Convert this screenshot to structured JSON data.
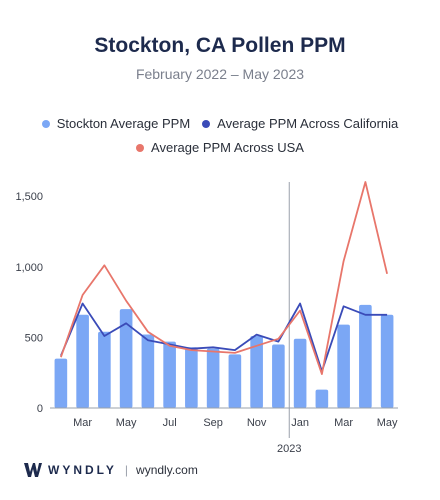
{
  "header": {
    "title": "Stockton, CA Pollen PPM",
    "subtitle": "February 2022 – May 2023"
  },
  "legend": [
    {
      "label": "Stockton Average PPM",
      "color": "#7ba7f5"
    },
    {
      "label": "Average PPM Across California",
      "color": "#3a4bb8"
    },
    {
      "label": "Average PPM Across USA",
      "color": "#e8766b"
    }
  ],
  "footer": {
    "brand": "WYNDLY",
    "url": "wyndly.com"
  },
  "chart_data": {
    "type": "bar",
    "categories": [
      "Feb 2022",
      "Mar 2022",
      "Apr 2022",
      "May 2022",
      "Jun 2022",
      "Jul 2022",
      "Aug 2022",
      "Sep 2022",
      "Oct 2022",
      "Nov 2022",
      "Dec 2022",
      "Jan 2023",
      "Feb 2023",
      "Mar 2023",
      "Apr 2023",
      "May 2023"
    ],
    "tick_labels": [
      "Mar",
      "May",
      "Jul",
      "Sep",
      "Nov",
      "Jan",
      "Mar",
      "May"
    ],
    "tick_indices": [
      1,
      3,
      5,
      7,
      9,
      11,
      13,
      15
    ],
    "year_label": "2023",
    "year_divider_after_index": 10,
    "series": [
      {
        "name": "Stockton Average PPM",
        "type": "bar",
        "color": "#7ba7f5",
        "values": [
          350,
          660,
          540,
          700,
          520,
          470,
          430,
          420,
          380,
          510,
          450,
          490,
          130,
          590,
          730,
          660
        ]
      },
      {
        "name": "Average PPM Across California",
        "type": "line",
        "color": "#3a4bb8",
        "values": [
          370,
          740,
          510,
          600,
          480,
          450,
          420,
          430,
          410,
          520,
          470,
          740,
          260,
          720,
          660,
          660
        ]
      },
      {
        "name": "Average PPM Across USA",
        "type": "line",
        "color": "#e8766b",
        "values": [
          360,
          800,
          1010,
          760,
          540,
          440,
          410,
          400,
          390,
          440,
          490,
          690,
          240,
          1040,
          1600,
          950
        ]
      }
    ],
    "yticks": [
      0,
      500,
      1000,
      1500
    ],
    "ytick_labels": [
      "0",
      "500",
      "1,000",
      "1,500"
    ],
    "ylim": [
      0,
      1600
    ],
    "grid": false,
    "legend_position": "top"
  }
}
